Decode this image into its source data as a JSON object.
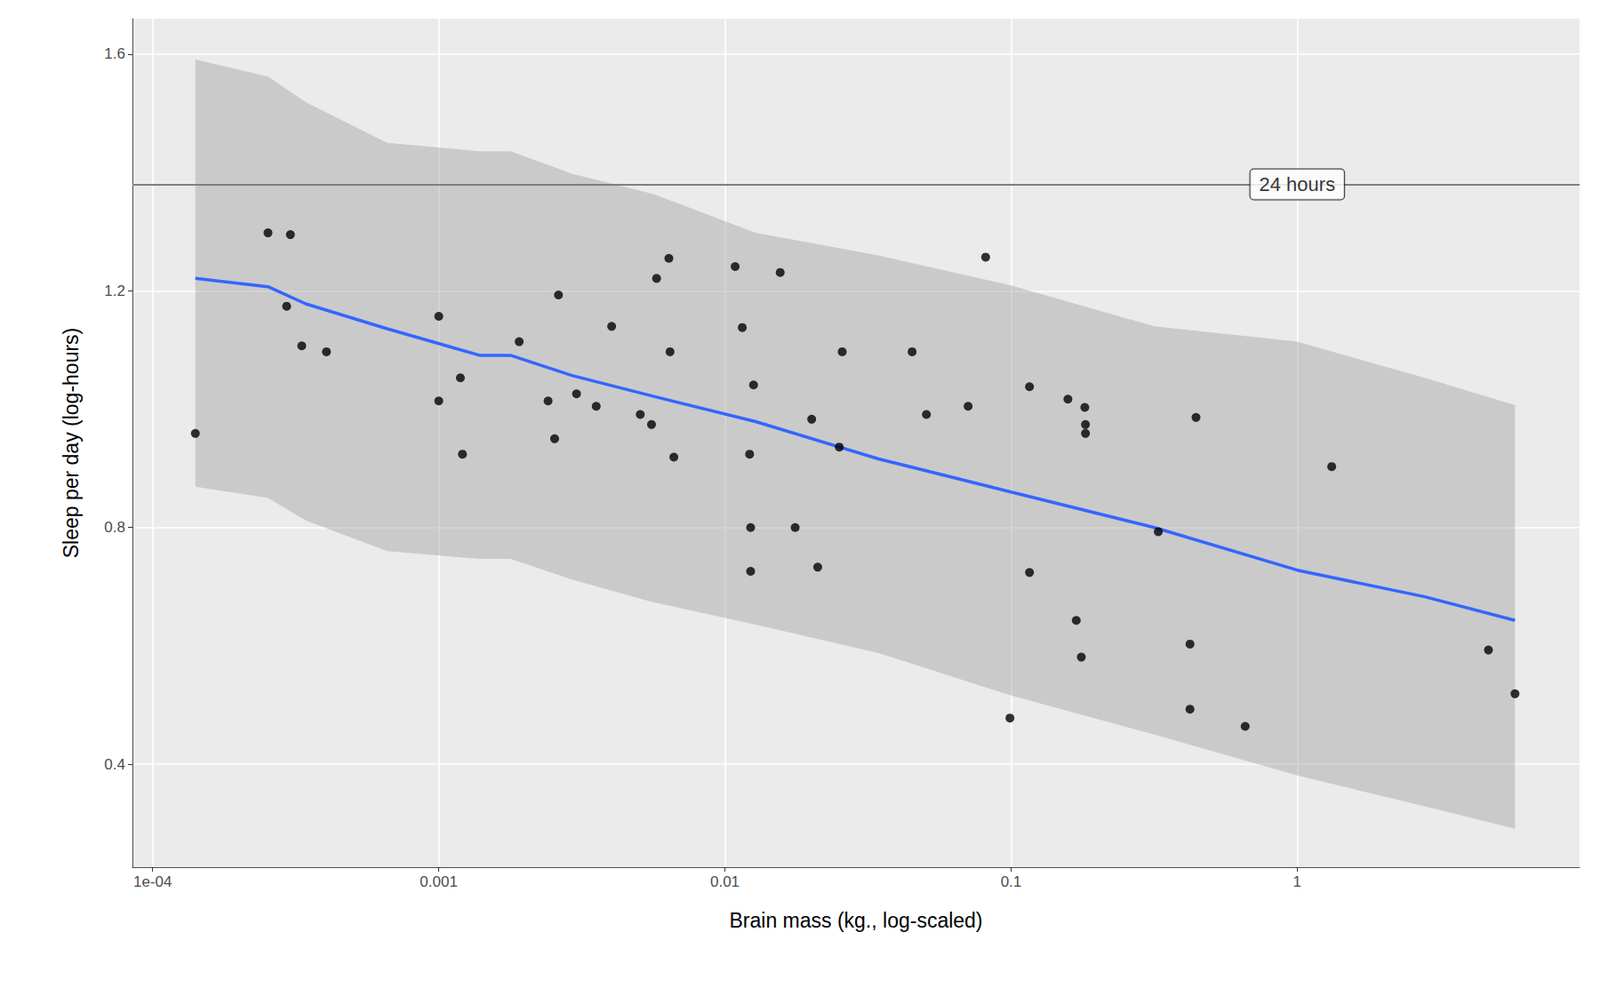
{
  "chart_data": {
    "type": "scatter",
    "xlabel": "Brain mass (kg., log-scaled)",
    "ylabel": "Sleep per day (log-hours)",
    "log": "x",
    "grid": true,
    "xlim": [
      8.5e-05,
      9.7
    ],
    "ylim": [
      0.226,
      1.66
    ],
    "xticks": [
      {
        "value": 0.0001,
        "label": "1e-04"
      },
      0.001,
      0.01,
      0.1,
      1
    ],
    "yticks": [
      0.4,
      0.8,
      1.2,
      1.6
    ],
    "color": "#000000",
    "x": [
      0.000141,
      0.000253,
      0.000303,
      0.000294,
      0.000332,
      0.000405,
      0.001,
      0.001,
      0.00119,
      0.00121,
      0.00191,
      0.00241,
      0.00262,
      0.00254,
      0.00303,
      0.00355,
      0.00402,
      0.00506,
      0.00554,
      0.00577,
      0.00637,
      0.00643,
      0.00663,
      0.01086,
      0.0115,
      0.0122,
      0.0123,
      0.0123,
      0.01259,
      0.0156,
      0.0176,
      0.0201,
      0.0211,
      0.0251,
      0.0257,
      0.0451,
      0.0506,
      0.0708,
      0.0815,
      0.0991,
      0.116,
      0.116,
      0.158,
      0.169,
      0.176,
      0.181,
      0.182,
      0.182,
      0.327,
      0.422,
      0.422,
      0.443,
      0.658,
      1.32,
      4.66,
      5.77
    ],
    "values": [
      0.959,
      1.298,
      1.295,
      1.174,
      1.107,
      1.097,
      1.157,
      1.014,
      1.053,
      0.924,
      1.114,
      1.014,
      1.193,
      0.95,
      1.026,
      1.005,
      1.14,
      0.991,
      0.974,
      1.221,
      1.255,
      1.097,
      0.919,
      1.241,
      1.138,
      0.924,
      0.8,
      0.726,
      1.041,
      1.231,
      0.8,
      0.983,
      0.733,
      0.936,
      1.097,
      1.097,
      0.991,
      1.005,
      1.257,
      0.478,
      1.038,
      0.724,
      1.017,
      0.643,
      0.581,
      1.003,
      0.974,
      0.959,
      0.793,
      0.603,
      0.493,
      0.986,
      0.464,
      0.903,
      0.593,
      0.519
    ],
    "trend": {
      "color": "#3366FF",
      "x": [
        0.000141,
        0.000253,
        0.000343,
        0.00066,
        0.00139,
        0.00178,
        0.00292,
        0.0056,
        0.0128,
        0.0344,
        0.1,
        0.317,
        1.0,
        2.79,
        5.77
      ],
      "values": [
        1.221,
        1.207,
        1.178,
        1.136,
        1.091,
        1.091,
        1.057,
        1.022,
        0.979,
        0.916,
        0.86,
        0.8,
        0.728,
        0.683,
        0.643
      ]
    },
    "band": {
      "color": "#999999",
      "x": [
        0.000141,
        0.000253,
        0.000343,
        0.00066,
        0.00139,
        0.00178,
        0.00292,
        0.0056,
        0.0128,
        0.0344,
        0.1,
        0.317,
        1.0,
        2.79,
        5.77
      ],
      "lower": [
        0.869,
        0.85,
        0.812,
        0.76,
        0.747,
        0.747,
        0.712,
        0.674,
        0.636,
        0.588,
        0.516,
        0.45,
        0.381,
        0.329,
        0.291
      ],
      "upper": [
        1.591,
        1.562,
        1.519,
        1.45,
        1.436,
        1.436,
        1.398,
        1.364,
        1.298,
        1.26,
        1.209,
        1.14,
        1.114,
        1.053,
        1.007
      ]
    },
    "annotations": [
      {
        "text": "24 hours",
        "x": 1,
        "y": 1.38,
        "color": "#808080"
      }
    ]
  }
}
